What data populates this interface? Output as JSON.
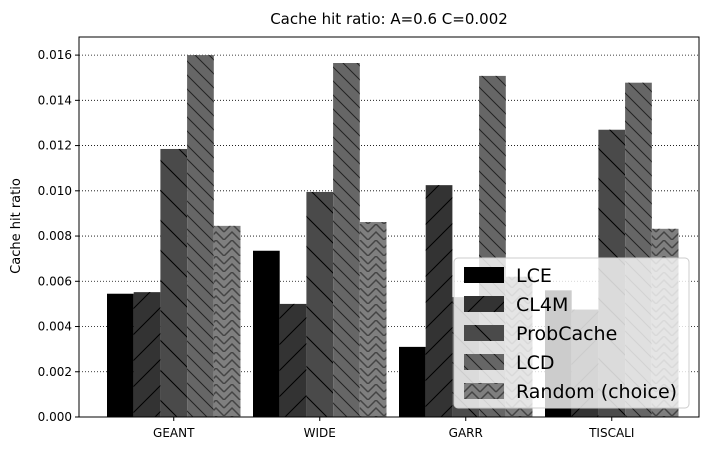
{
  "chart_data": {
    "type": "bar",
    "title": "Cache hit ratio: A=0.6 C=0.002",
    "xlabel": "",
    "ylabel": "Cache hit ratio",
    "categories": [
      "GEANT",
      "WIDE",
      "GARR",
      "TISCALI"
    ],
    "ylim": [
      0,
      0.0168
    ],
    "yticks": [
      "0.000",
      "0.002",
      "0.004",
      "0.006",
      "0.008",
      "0.010",
      "0.012",
      "0.014",
      "0.016"
    ],
    "grid": "horizontal-dotted",
    "legend_position": "lower-right",
    "series": [
      {
        "name": "LCE",
        "values": [
          0.00545,
          0.00735,
          0.0031,
          0.0056
        ],
        "color": "#000000",
        "hatch": "none"
      },
      {
        "name": "CL4M",
        "values": [
          0.00552,
          0.005,
          0.01025,
          0.00475
        ],
        "color": "#333333",
        "hatch": "forward"
      },
      {
        "name": "ProbCache",
        "values": [
          0.01185,
          0.00995,
          0.0053,
          0.0127
        ],
        "color": "#4a4a4a",
        "hatch": "backward-wide"
      },
      {
        "name": "LCD",
        "values": [
          0.016,
          0.01565,
          0.01508,
          0.01478
        ],
        "color": "#666666",
        "hatch": "backward"
      },
      {
        "name": "Random (choice)",
        "values": [
          0.00845,
          0.00862,
          0.0062,
          0.00832
        ],
        "color": "#7f7f7f",
        "hatch": "chevron"
      }
    ]
  }
}
